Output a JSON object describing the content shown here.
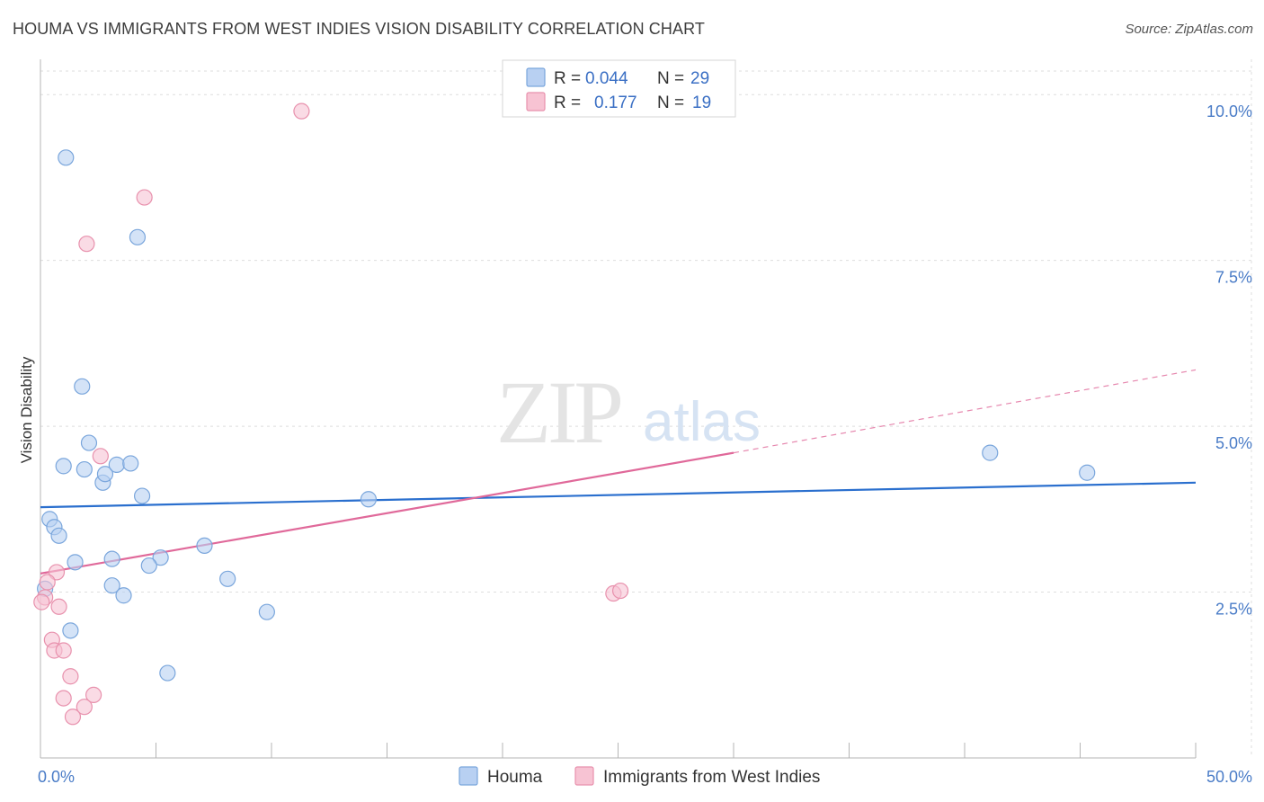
{
  "title": "HOUMA VS IMMIGRANTS FROM WEST INDIES VISION DISABILITY CORRELATION CHART",
  "source": "Source: ZipAtlas.com",
  "watermark": {
    "zip": "ZIP",
    "atlas": "atlas"
  },
  "colors": {
    "houma_fill": "#b8d0f2",
    "houma_stroke": "#7aa6dc",
    "houma_line": "#2a6fce",
    "wi_fill": "#f7c3d3",
    "wi_stroke": "#e891ad",
    "wi_line": "#e0699a",
    "grid": "#dedede",
    "tick": "#4a7cc7"
  },
  "legend": {
    "rows": [
      {
        "r_label": "R =",
        "r_value": "0.044",
        "n_label": "N =",
        "n_value": "29"
      },
      {
        "r_label": "R =",
        "r_value": "0.177",
        "n_label": "N =",
        "n_value": "19"
      }
    ]
  },
  "chart_data": {
    "type": "scatter",
    "title": "HOUMA VS IMMIGRANTS FROM WEST INDIES VISION DISABILITY CORRELATION CHART",
    "xlabel": "",
    "ylabel": "Vision Disability",
    "xlim": [
      0,
      50
    ],
    "ylim": [
      0,
      10.45
    ],
    "x_tick_labels": [
      "0.0%",
      "50.0%"
    ],
    "y_ticks": [
      2.5,
      5.0,
      7.5,
      10.0
    ],
    "y_tick_labels": [
      "2.5%",
      "5.0%",
      "7.5%",
      "10.0%"
    ],
    "series": [
      {
        "name": "Houma",
        "points": [
          [
            1.1,
            9.05
          ],
          [
            4.2,
            7.85
          ],
          [
            1.8,
            5.6
          ],
          [
            2.1,
            4.75
          ],
          [
            1.0,
            4.4
          ],
          [
            1.9,
            4.35
          ],
          [
            2.7,
            4.15
          ],
          [
            2.8,
            4.28
          ],
          [
            3.3,
            4.42
          ],
          [
            3.9,
            4.44
          ],
          [
            4.4,
            3.95
          ],
          [
            14.2,
            3.9
          ],
          [
            0.4,
            3.6
          ],
          [
            0.6,
            3.48
          ],
          [
            0.8,
            3.35
          ],
          [
            7.1,
            3.2
          ],
          [
            1.5,
            2.95
          ],
          [
            3.1,
            3.0
          ],
          [
            5.2,
            3.02
          ],
          [
            4.7,
            2.9
          ],
          [
            3.1,
            2.6
          ],
          [
            8.1,
            2.7
          ],
          [
            3.6,
            2.45
          ],
          [
            0.2,
            2.55
          ],
          [
            9.8,
            2.2
          ],
          [
            1.3,
            1.92
          ],
          [
            5.5,
            1.28
          ],
          [
            41.1,
            4.6
          ],
          [
            45.3,
            4.3
          ]
        ],
        "trend": {
          "x": [
            0,
            50
          ],
          "y": [
            3.78,
            4.15
          ]
        }
      },
      {
        "name": "Immigrants from West Indies",
        "points": [
          [
            11.3,
            9.75
          ],
          [
            4.5,
            8.45
          ],
          [
            2.0,
            7.75
          ],
          [
            2.6,
            4.55
          ],
          [
            0.7,
            2.8
          ],
          [
            0.3,
            2.65
          ],
          [
            0.2,
            2.42
          ],
          [
            0.8,
            2.28
          ],
          [
            0.5,
            1.78
          ],
          [
            0.6,
            1.62
          ],
          [
            1.0,
            1.62
          ],
          [
            1.3,
            1.23
          ],
          [
            1.0,
            0.9
          ],
          [
            2.3,
            0.95
          ],
          [
            1.9,
            0.77
          ],
          [
            1.4,
            0.62
          ],
          [
            24.8,
            2.48
          ],
          [
            25.1,
            2.52
          ],
          [
            0.05,
            2.35
          ]
        ],
        "trend": {
          "x": [
            0,
            30
          ],
          "y": [
            2.78,
            4.6
          ]
        },
        "trend_extension": {
          "x": [
            30,
            50
          ],
          "y": [
            4.6,
            5.85
          ]
        }
      }
    ]
  },
  "bottom_legend": [
    {
      "label": "Houma"
    },
    {
      "label": "Immigrants from West Indies"
    }
  ]
}
